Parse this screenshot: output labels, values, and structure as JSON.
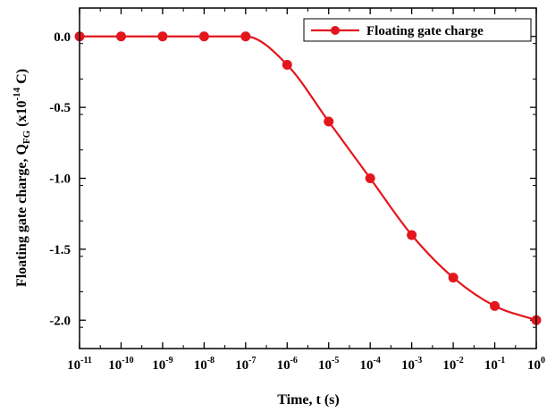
{
  "chart_data": {
    "type": "line",
    "x_scale": "log",
    "x": [
      1e-11,
      1e-10,
      1e-09,
      1e-08,
      1e-07,
      1e-06,
      1e-05,
      0.0001,
      0.001,
      0.01,
      0.1,
      1
    ],
    "series": [
      {
        "name": "Floating gate charge",
        "values": [
          0.0,
          0.0,
          0.0,
          0.0,
          0.0,
          -0.2,
          -0.6,
          -1.0,
          -1.4,
          -1.7,
          -1.9,
          -2.0
        ],
        "color": "#e3161d",
        "marker": "circle"
      }
    ],
    "xlabel": "Time, t (s)",
    "ylabel": {
      "main": "Floating gate charge, Q",
      "subscript": "FG",
      "unit_pre": " (x10",
      "unit_sup": "-14",
      "unit_post": " C)"
    },
    "xlim": [
      1e-11,
      1
    ],
    "ylim": [
      -2.2,
      0.2
    ],
    "x_ticks": [
      {
        "base": "10",
        "exp": "-11"
      },
      {
        "base": "10",
        "exp": "-10"
      },
      {
        "base": "10",
        "exp": "-9"
      },
      {
        "base": "10",
        "exp": "-8"
      },
      {
        "base": "10",
        "exp": "-7"
      },
      {
        "base": "10",
        "exp": "-6"
      },
      {
        "base": "10",
        "exp": "-5"
      },
      {
        "base": "10",
        "exp": "-4"
      },
      {
        "base": "10",
        "exp": "-3"
      },
      {
        "base": "10",
        "exp": "-2"
      },
      {
        "base": "10",
        "exp": "-1"
      },
      {
        "base": "10",
        "exp": "0"
      }
    ],
    "y_ticks": [
      "0.0",
      "-0.5",
      "-1.0",
      "-1.5",
      "-2.0"
    ],
    "y_tick_values": [
      0.0,
      -0.5,
      -1.0,
      -1.5,
      -2.0
    ],
    "grid": false,
    "legend_position": "top-right"
  }
}
